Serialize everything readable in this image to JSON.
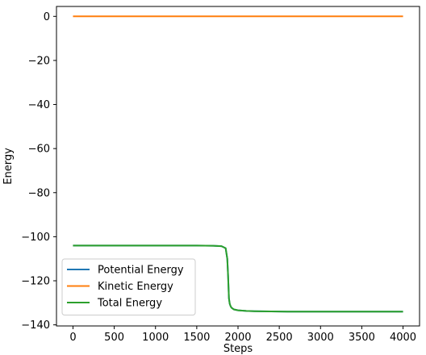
{
  "chart_data": {
    "type": "line",
    "title": "",
    "xlabel": "Steps",
    "ylabel": "Energy",
    "xlim": [
      -200,
      4200
    ],
    "ylim": [
      -140.5,
      4.5
    ],
    "xticks": [
      0,
      500,
      1000,
      1500,
      2000,
      2500,
      3000,
      3500,
      4000
    ],
    "xtick_labels": [
      "0",
      "500",
      "1000",
      "1500",
      "2000",
      "2500",
      "3000",
      "3500",
      "4000"
    ],
    "yticks": [
      0,
      -20,
      -40,
      -60,
      -80,
      -100,
      -120,
      -140
    ],
    "ytick_labels": [
      "0",
      "−20",
      "−40",
      "−60",
      "−80",
      "−100",
      "−120",
      "−140"
    ],
    "grid": false,
    "legend_position": "lower-left",
    "series": [
      {
        "name": "Potential Energy",
        "color": "#1f77b4",
        "x": [
          0,
          500,
          1000,
          1500,
          1700,
          1800,
          1850,
          1870,
          1880,
          1890,
          1900,
          1910,
          1920,
          1950,
          2000,
          2100,
          2200,
          2400,
          2600,
          3000,
          3500,
          4000
        ],
        "y": [
          -104,
          -104,
          -104,
          -104,
          -104.1,
          -104.3,
          -105.2,
          -110,
          -118,
          -128,
          -130.5,
          -131.5,
          -132.2,
          -133.0,
          -133.4,
          -133.7,
          -133.8,
          -133.9,
          -134.0,
          -134.0,
          -134.0,
          -134.0
        ]
      },
      {
        "name": "Kinetic Energy",
        "color": "#ff7f0e",
        "x": [
          0,
          1000,
          2000,
          3000,
          4000
        ],
        "y": [
          0,
          0,
          0,
          0,
          0
        ]
      },
      {
        "name": "Total Energy",
        "color": "#2ca02c",
        "x": [
          0,
          500,
          1000,
          1500,
          1700,
          1800,
          1850,
          1870,
          1880,
          1890,
          1900,
          1910,
          1920,
          1950,
          2000,
          2100,
          2200,
          2400,
          2600,
          3000,
          3500,
          4000
        ],
        "y": [
          -104,
          -104,
          -104,
          -104,
          -104.1,
          -104.3,
          -105.2,
          -110,
          -118,
          -128,
          -130.5,
          -131.5,
          -132.2,
          -133.0,
          -133.4,
          -133.7,
          -133.8,
          -133.9,
          -134.0,
          -134.0,
          -134.0,
          -134.0
        ]
      }
    ]
  }
}
